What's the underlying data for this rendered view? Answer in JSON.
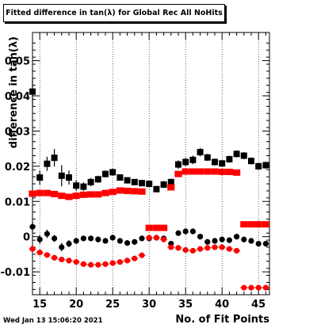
{
  "chart_data": {
    "type": "scatter",
    "title": "Fitted difference in tan(λ) for Global Rec All NoHits",
    "xlabel": "No. of Fit Points",
    "ylabel": "difference in tan(λ)",
    "xlim": [
      14,
      46.5
    ],
    "ylim": [
      -0.0165,
      0.058
    ],
    "xticks": [
      15,
      20,
      25,
      30,
      35,
      40,
      45
    ],
    "xtick_labels": [
      "15",
      "20",
      "25",
      "30",
      "35",
      "40",
      "45"
    ],
    "yticks": [
      -0.01,
      0,
      0.01,
      0.02,
      0.03,
      0.04,
      0.05
    ],
    "ytick_labels": [
      "-0.01",
      "0",
      "0.01",
      "0.02",
      "0.03",
      "0.04",
      "0.05"
    ],
    "x": [
      14,
      15,
      16,
      17,
      18,
      19,
      20,
      21,
      22,
      23,
      24,
      25,
      26,
      27,
      28,
      29,
      30,
      31,
      32,
      33,
      34,
      35,
      36,
      37,
      38,
      39,
      40,
      41,
      42,
      43,
      44,
      45,
      46
    ],
    "series": [
      {
        "style": "square-errorbar",
        "color": "#000000",
        "values": [
          0.0412,
          0.0168,
          0.0207,
          0.0224,
          0.0173,
          0.0168,
          0.0145,
          0.0142,
          0.0155,
          0.0163,
          0.0178,
          0.0183,
          0.0168,
          0.016,
          0.0155,
          0.0152,
          0.015,
          0.0135,
          0.0148,
          0.0155,
          0.0205,
          0.0212,
          0.0218,
          0.024,
          0.0225,
          0.0212,
          0.0208,
          0.022,
          0.0235,
          0.023,
          0.0215,
          0.02,
          0.0203
        ],
        "errors": [
          0.004,
          0.002,
          0.002,
          0.0025,
          0.003,
          0.002,
          0.0015,
          0.0012,
          0.0012,
          0.001,
          0.001,
          0.001,
          0.0008,
          0.0008,
          0.0008,
          0.0008,
          0.0008,
          0.0008,
          0.001,
          0.001,
          0.0012,
          0.0012,
          0.0012,
          0.0012,
          0.001,
          0.001,
          0.001,
          0.001,
          0.001,
          0.001,
          0.001,
          0.001,
          0.001
        ]
      },
      {
        "style": "square-band",
        "color": "#ff0000",
        "values": [
          0.0122,
          0.0124,
          0.0124,
          0.0121,
          0.0116,
          0.0113,
          0.0116,
          0.0119,
          0.012,
          0.012,
          0.0124,
          0.0127,
          0.0131,
          0.013,
          0.0129,
          0.0128,
          0.0025,
          0.0025,
          0.0025,
          0.014,
          0.0178,
          0.0185,
          0.0185,
          0.0185,
          0.0185,
          0.0185,
          0.0184,
          0.0184,
          0.0182,
          0.0035,
          0.0035,
          0.0035,
          0.0035
        ]
      },
      {
        "style": "circle-errorbar",
        "color": "#000000",
        "values": [
          0.0028,
          -0.0008,
          0.0008,
          -0.0005,
          -0.003,
          -0.002,
          -0.0012,
          -0.0005,
          -0.0005,
          -0.0008,
          -0.0012,
          -0.0003,
          -0.0012,
          -0.0018,
          -0.0015,
          -0.0005,
          -0.0005,
          -0.0003,
          -0.0005,
          -0.002,
          0.001,
          0.0015,
          0.0015,
          0.0,
          -0.0015,
          -0.0012,
          -0.0008,
          -0.001,
          0.0,
          -0.0008,
          -0.0012,
          -0.002,
          -0.002
        ],
        "errors": [
          0.0015,
          0.0012,
          0.0012,
          0.001,
          0.0012,
          0.001,
          0.0008,
          0.0008,
          0.0008,
          0.0008,
          0.0008,
          0.0008,
          0.0008,
          0.0008,
          0.0008,
          0.0008,
          0.0008,
          0.0008,
          0.0008,
          0.0008,
          0.0008,
          0.0008,
          0.0008,
          0.0008,
          0.0008,
          0.0008,
          0.0008,
          0.0008,
          0.0008,
          0.0008,
          0.0008,
          0.0008,
          0.0008
        ]
      },
      {
        "style": "circle-band",
        "color": "#ff0000",
        "values": [
          -0.0035,
          -0.0045,
          -0.0052,
          -0.006,
          -0.0065,
          -0.0068,
          -0.0072,
          -0.0078,
          -0.008,
          -0.008,
          -0.0078,
          -0.0075,
          -0.0072,
          -0.0068,
          -0.0062,
          -0.0053,
          -0.0003,
          -0.0003,
          -0.0008,
          -0.003,
          -0.0032,
          -0.0038,
          -0.004,
          -0.0035,
          -0.0032,
          -0.003,
          -0.003,
          -0.0035,
          -0.004,
          -0.0145,
          -0.0145,
          -0.0145,
          -0.0145
        ]
      }
    ],
    "grid": "vertical-dotted"
  },
  "footer": {
    "date": "Wed Jan 13 15:06:20 2021"
  }
}
